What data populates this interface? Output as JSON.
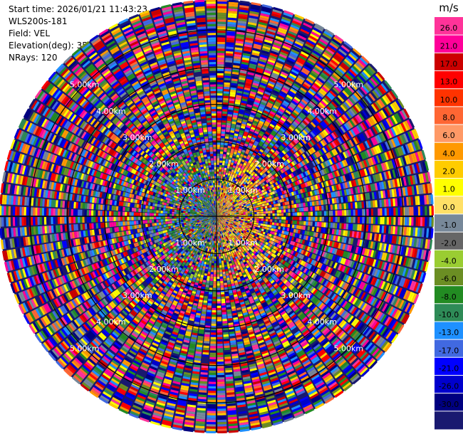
{
  "header": {
    "start_time": "Start time: 2026/01/21 11:43:23",
    "instrument": "WLS200s-181",
    "field": "Field: VEL",
    "elevation": "Elevation(deg): 35.00",
    "nrays": "NRays: 120"
  },
  "chart_data": {
    "type": "heatmap",
    "subtype": "ppi-polar",
    "field": "VEL",
    "unit": "m/s",
    "nrays": 120,
    "elevation_deg": 35.0,
    "range_rings_km": [
      "1.00km",
      "2.00km",
      "3.00km",
      "4.00km",
      "5.00km"
    ],
    "range_ring_values_km": [
      1,
      2,
      3,
      4,
      5
    ],
    "max_range_km": 5.8,
    "colorbar": {
      "label": "m/s",
      "ticks": [
        "26.0",
        "21.0",
        "17.0",
        "13.0",
        "10.0",
        "8.0",
        "6.0",
        "4.0",
        "2.0",
        "1.0",
        "0.0",
        "-1.0",
        "-2.0",
        "-4.0",
        "-6.0",
        "-8.0",
        "-10.0",
        "-13.0",
        "-17.0",
        "-21.0",
        "-26.0",
        "-30.0"
      ],
      "colors": [
        "#ff3399",
        "#ff0099",
        "#cc0000",
        "#ff0000",
        "#ff3300",
        "#ff6633",
        "#ff9966",
        "#ff9900",
        "#ffcc00",
        "#ffff00",
        "#ffe066",
        "#778899",
        "#666666",
        "#9acd32",
        "#6b8e23",
        "#228b22",
        "#2e8b57",
        "#1e90ff",
        "#4169e1",
        "#0000ff",
        "#0000cd",
        "#000080",
        "#191970"
      ]
    },
    "near_range_pattern": "positive velocities (yellow/orange) to the east, negative (blue/green) to the west; outer gates noisy"
  }
}
